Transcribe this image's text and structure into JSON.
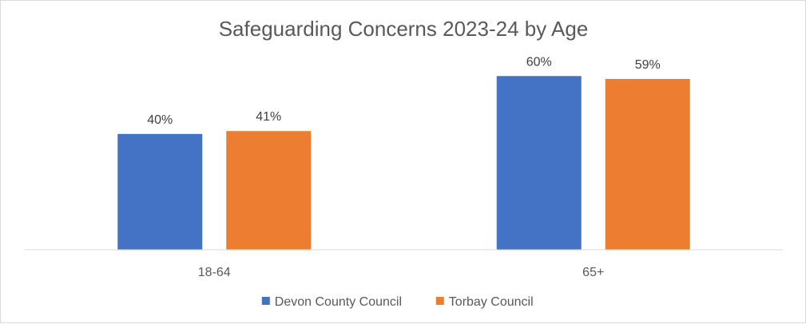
{
  "chart_data": {
    "type": "bar",
    "title": "Safeguarding Concerns  2023-24 by Age",
    "categories": [
      "18-64",
      "65+"
    ],
    "series": [
      {
        "name": "Devon County Council",
        "values": [
          40,
          60
        ],
        "labels": [
          "40%",
          "60%"
        ],
        "color": "#4472c4"
      },
      {
        "name": "Torbay Council",
        "values": [
          41,
          59
        ],
        "labels": [
          "41%",
          "59%"
        ],
        "color": "#ed7d31"
      }
    ],
    "unit": "%",
    "ylim": [
      0,
      70
    ],
    "grid": false,
    "legend": "bottom",
    "xlabel": "",
    "ylabel": ""
  },
  "colors": {
    "axis": "#d9d9d9",
    "text": "#595959"
  }
}
